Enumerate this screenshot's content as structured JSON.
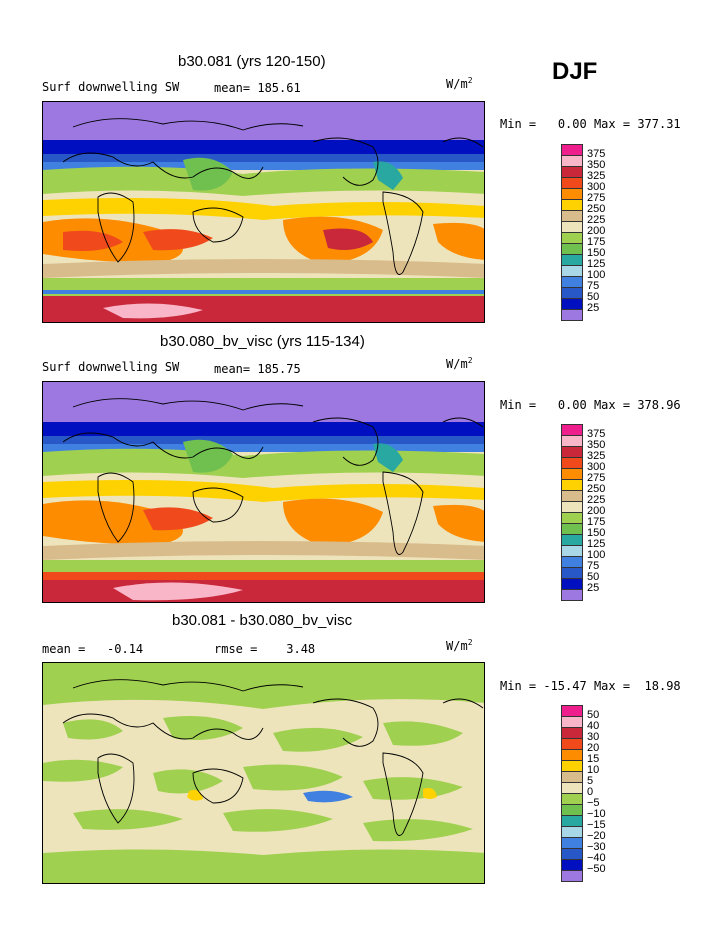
{
  "season": "DJF",
  "panels": [
    {
      "title": "b30.081 (yrs 120-150)",
      "left_label": "Surf downwelling SW",
      "center_label": "mean= 185.61",
      "units": "W/m",
      "units_exp": "2",
      "min_label": "Min =",
      "min_value": "0.00",
      "max_label": "Max =",
      "max_value": "377.31",
      "colorbar": {
        "ticks": [
          "375",
          "350",
          "325",
          "300",
          "275",
          "250",
          "225",
          "200",
          "175",
          "150",
          "125",
          "100",
          "75",
          "50",
          "25"
        ],
        "colors": [
          "#ee1e8c",
          "#f9b6c8",
          "#c8283a",
          "#f04a1c",
          "#fd8c00",
          "#fed200",
          "#d9bc8c",
          "#eee4bc",
          "#a0d050",
          "#70c050",
          "#28a8a0",
          "#a8d8e8",
          "#4080e0",
          "#2858c8",
          "#0010c0",
          "#9c78e0"
        ]
      }
    },
    {
      "title": "b30.080_bv_visc (yrs 115-134)",
      "left_label": "Surf downwelling SW",
      "center_label": "mean= 185.75",
      "units": "W/m",
      "units_exp": "2",
      "min_label": "Min =",
      "min_value": "0.00",
      "max_label": "Max =",
      "max_value": "378.96",
      "colorbar": {
        "ticks": [
          "375",
          "350",
          "325",
          "300",
          "275",
          "250",
          "225",
          "200",
          "175",
          "150",
          "125",
          "100",
          "75",
          "50",
          "25"
        ],
        "colors": [
          "#ee1e8c",
          "#f9b6c8",
          "#c8283a",
          "#f04a1c",
          "#fd8c00",
          "#fed200",
          "#d9bc8c",
          "#eee4bc",
          "#a0d050",
          "#70c050",
          "#28a8a0",
          "#a8d8e8",
          "#4080e0",
          "#2858c8",
          "#0010c0",
          "#9c78e0"
        ]
      }
    },
    {
      "title": "b30.081 - b30.080_bv_visc",
      "left_label": "mean =   -0.14",
      "center_label": "rmse =    3.48",
      "units": "W/m",
      "units_exp": "2",
      "min_label": "Min =",
      "min_value": "-15.47",
      "max_label": "Max =",
      "max_value": "18.98",
      "colorbar": {
        "ticks": [
          "50",
          "40",
          "30",
          "20",
          "15",
          "10",
          "5",
          "0",
          "−5",
          "−10",
          "−15",
          "−20",
          "−30",
          "−40",
          "−50"
        ],
        "colors": [
          "#ee1e8c",
          "#f9b6c8",
          "#c8283a",
          "#f04a1c",
          "#fd8c00",
          "#fed200",
          "#d9bc8c",
          "#eee4bc",
          "#a0d050",
          "#70c050",
          "#28a8a0",
          "#a8d8e8",
          "#4080e0",
          "#2858c8",
          "#0010c0",
          "#9c78e0"
        ]
      }
    }
  ],
  "chart_data": [
    {
      "type": "heatmap",
      "title": "b30.081 (yrs 120-150)",
      "variable": "Surf downwelling SW",
      "mean": 185.61,
      "units": "W/m2",
      "min": 0.0,
      "max": 377.31,
      "contour_levels": [
        25,
        50,
        75,
        100,
        125,
        150,
        175,
        200,
        225,
        250,
        275,
        300,
        325,
        350,
        375
      ]
    },
    {
      "type": "heatmap",
      "title": "b30.080_bv_visc (yrs 115-134)",
      "variable": "Surf downwelling SW",
      "mean": 185.75,
      "units": "W/m2",
      "min": 0.0,
      "max": 378.96,
      "contour_levels": [
        25,
        50,
        75,
        100,
        125,
        150,
        175,
        200,
        225,
        250,
        275,
        300,
        325,
        350,
        375
      ]
    },
    {
      "type": "heatmap",
      "title": "b30.081 - b30.080_bv_visc",
      "mean": -0.14,
      "rmse": 3.48,
      "units": "W/m2",
      "min": -15.47,
      "max": 18.98,
      "contour_levels": [
        -50,
        -40,
        -30,
        -20,
        -15,
        -10,
        -5,
        0,
        5,
        10,
        15,
        20,
        30,
        40,
        50
      ]
    }
  ]
}
